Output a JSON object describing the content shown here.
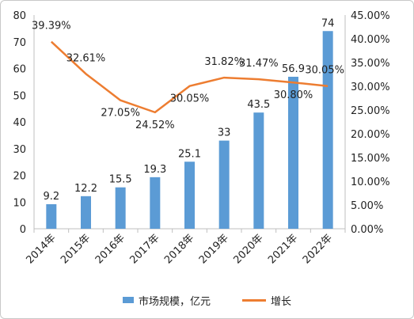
{
  "chart_data": {
    "type": "bar+line",
    "categories": [
      "2014年",
      "2015年",
      "2016年",
      "2017年",
      "2018年",
      "2019年",
      "2020年",
      "2021年",
      "2022年"
    ],
    "series": [
      {
        "name": "市场规模，亿元",
        "type": "bar",
        "axis": "left",
        "values": [
          9.2,
          12.2,
          15.5,
          19.3,
          25.1,
          33,
          43.5,
          56.9,
          74
        ],
        "labels": [
          "9.2",
          "12.2",
          "15.5",
          "19.3",
          "25.1",
          "33",
          "43.5",
          "56.9",
          "74"
        ]
      },
      {
        "name": "增长",
        "type": "line",
        "axis": "right",
        "values": [
          39.39,
          32.61,
          27.05,
          24.52,
          30.05,
          31.82,
          31.47,
          30.8,
          30.05
        ],
        "labels": [
          "39.39%",
          "32.61%",
          "27.05%",
          "24.52%",
          "30.05%",
          "31.82%",
          "31.47%",
          "30.80%",
          "30.05%"
        ]
      }
    ],
    "y_left": {
      "min": 0,
      "max": 80,
      "ticks": [
        "0",
        "10",
        "20",
        "30",
        "40",
        "50",
        "60",
        "70",
        "80"
      ]
    },
    "y_right": {
      "min": 0,
      "max": 45,
      "ticks": [
        "0.00%",
        "5.00%",
        "10.00%",
        "15.00%",
        "20.00%",
        "25.00%",
        "30.00%",
        "35.00%",
        "40.00%",
        "45.00%"
      ]
    },
    "grid": false,
    "legend_position": "bottom",
    "colors": {
      "bar": "#5b9bd5",
      "line": "#ed7d31"
    }
  }
}
